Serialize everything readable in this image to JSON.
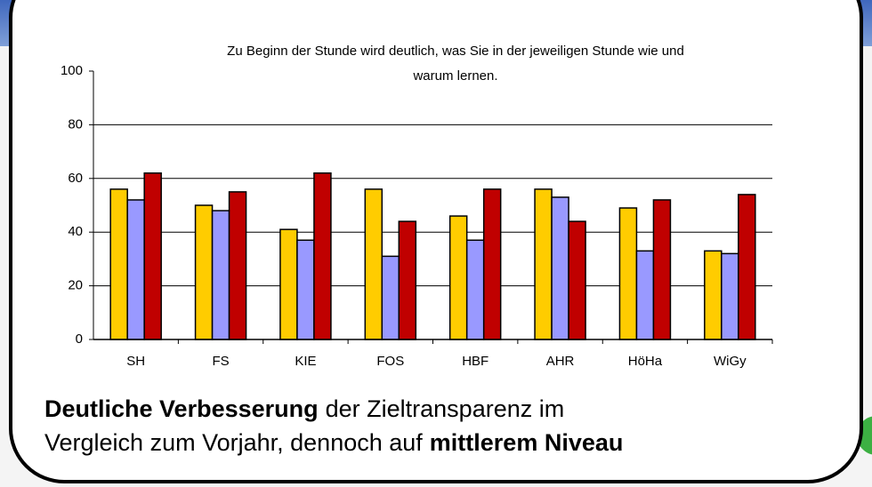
{
  "chart_data": {
    "type": "bar",
    "title": [
      "Zu Beginn der Stunde wird deutlich, was Sie in der jeweiligen Stunde wie und",
      "warum lernen."
    ],
    "categories": [
      "SH",
      "FS",
      "KIE",
      "FOS",
      "HBF",
      "AHR",
      "HöHa",
      "WiGy"
    ],
    "series": [
      {
        "color": "#ffcc00",
        "values": [
          56,
          50,
          41,
          56,
          46,
          56,
          49,
          33
        ]
      },
      {
        "color": "#9999ff",
        "values": [
          52,
          48,
          37,
          31,
          37,
          53,
          33,
          32
        ]
      },
      {
        "color": "#c00000",
        "values": [
          62,
          55,
          62,
          44,
          56,
          44,
          52,
          54
        ]
      }
    ],
    "ylim": [
      0,
      100
    ],
    "yticks": [
      0,
      20,
      40,
      60,
      80,
      100
    ],
    "grid": true
  },
  "caption": {
    "line1": [
      {
        "text": "Deutliche Verbesserung",
        "bold": true
      },
      {
        "text": "der Zieltransparenz im",
        "bold": false
      }
    ],
    "line2": [
      {
        "text": "Vergleich zum Vorjahr, dennoch auf",
        "bold": false
      },
      {
        "text": "mittlerem Niveau",
        "bold": true
      }
    ]
  }
}
